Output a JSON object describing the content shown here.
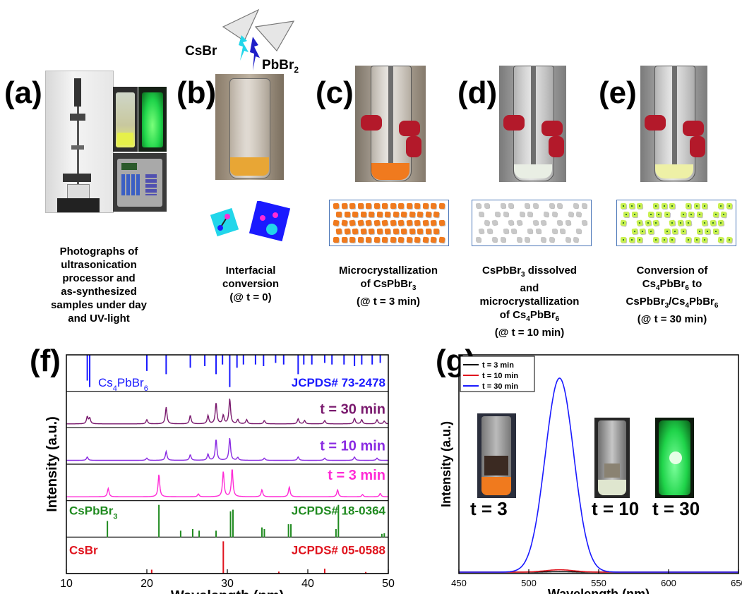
{
  "panels": {
    "a": {
      "label": "(a)",
      "caption": [
        "Photographs of",
        "ultrasonication",
        "processor and",
        "as-synthesized",
        "samples under day",
        "and UV-light"
      ]
    },
    "b": {
      "label": "(b)",
      "caption": [
        "Interfacial",
        "conversion",
        "(@ t = 0)"
      ],
      "reagent_left": "CsBr",
      "reagent_right": "PbBr",
      "reagent_right_sub": "2"
    },
    "c": {
      "label": "(c)",
      "caption": [
        "Microcrystallization",
        "of CsPbBr3",
        "(@ t = 3 min)"
      ]
    },
    "d": {
      "label": "(d)",
      "caption": [
        "CsPbBr3 dissolved",
        "and",
        "microcrystallization",
        "of Cs4PbBr6",
        "(@ t = 10 min)"
      ]
    },
    "e": {
      "label": "(e)",
      "caption": [
        "Conversion of",
        "Cs4PbBr6 to",
        "CsPbBr3/Cs4PbBr6",
        "(@ t = 30 min)"
      ]
    },
    "f": {
      "label": "(f)"
    },
    "g": {
      "label": "(g)"
    }
  },
  "colors": {
    "cs4pbbr6": "#1a1aff",
    "t30": "#7a1a6e",
    "t10": "#8a2be2",
    "t3": "#ff2bd6",
    "cspbbr3": "#1f8a1f",
    "csbr": "#e0141e",
    "sketch_border": "#4a76b8",
    "orange": "#f07a1e",
    "grey": "#c8c8c8",
    "green_yellow": "#c8f050"
  },
  "chart_data": [
    {
      "type": "line",
      "panel": "(f)",
      "xlabel": "Wavelength (nm)",
      "ylabel": "Intensity (a.u.)",
      "xlim": [
        10,
        50
      ],
      "xticks": [
        10,
        20,
        30,
        40,
        50
      ],
      "stack": [
        {
          "name": "Cs4PbBr6",
          "ref": "JCPDS# 73-2478",
          "kind": "sticks",
          "peaks": [
            [
              12.6,
              0.8
            ],
            [
              12.9,
              1.0
            ],
            [
              20.0,
              0.5
            ],
            [
              22.4,
              0.6
            ],
            [
              25.4,
              0.4
            ],
            [
              27.2,
              0.35
            ],
            [
              28.6,
              0.6
            ],
            [
              29.4,
              0.3
            ],
            [
              30.3,
              1.0
            ],
            [
              31.2,
              0.4
            ],
            [
              32.0,
              0.3
            ],
            [
              33.5,
              0.3
            ],
            [
              34.5,
              0.35
            ],
            [
              36.0,
              0.25
            ],
            [
              37.0,
              0.3
            ],
            [
              38.8,
              0.6
            ],
            [
              39.5,
              0.3
            ],
            [
              40.5,
              0.3
            ],
            [
              42.1,
              0.25
            ],
            [
              43.0,
              0.3
            ],
            [
              44.5,
              0.3
            ],
            [
              45.8,
              0.35
            ],
            [
              46.7,
              0.3
            ],
            [
              48.0,
              0.3
            ],
            [
              49.0,
              0.25
            ]
          ]
        },
        {
          "name": "t = 30 min",
          "kind": "pattern",
          "peaks": [
            [
              12.6,
              0.25
            ],
            [
              12.9,
              0.2
            ],
            [
              20.0,
              0.15
            ],
            [
              22.4,
              0.6
            ],
            [
              25.4,
              0.3
            ],
            [
              27.6,
              0.3
            ],
            [
              28.6,
              0.75
            ],
            [
              29.5,
              0.3
            ],
            [
              30.3,
              0.9
            ],
            [
              31.3,
              0.15
            ],
            [
              32.4,
              0.15
            ],
            [
              34.6,
              0.12
            ],
            [
              38.8,
              0.18
            ],
            [
              39.6,
              0.12
            ],
            [
              42.1,
              0.12
            ],
            [
              45.8,
              0.2
            ],
            [
              46.7,
              0.15
            ],
            [
              48.6,
              0.15
            ],
            [
              49.5,
              0.1
            ]
          ]
        },
        {
          "name": "t = 10 min",
          "kind": "pattern",
          "peaks": [
            [
              12.6,
              0.12
            ],
            [
              20.0,
              0.08
            ],
            [
              22.4,
              0.32
            ],
            [
              25.4,
              0.2
            ],
            [
              27.6,
              0.22
            ],
            [
              28.6,
              0.75
            ],
            [
              30.3,
              0.8
            ],
            [
              31.3,
              0.1
            ],
            [
              34.6,
              0.08
            ],
            [
              38.8,
              0.12
            ],
            [
              42.1,
              0.08
            ],
            [
              45.8,
              0.12
            ],
            [
              48.6,
              0.08
            ]
          ]
        },
        {
          "name": "t = 3 min",
          "kind": "pattern",
          "peaks": [
            [
              15.2,
              0.3
            ],
            [
              21.5,
              0.8
            ],
            [
              26.4,
              0.1
            ],
            [
              29.5,
              0.9
            ],
            [
              30.6,
              1.0
            ],
            [
              34.3,
              0.25
            ],
            [
              37.7,
              0.35
            ],
            [
              43.7,
              0.25
            ],
            [
              46.8,
              0.08
            ],
            [
              49.0,
              0.12
            ]
          ]
        },
        {
          "name": "CsPbBr3",
          "ref": "JCPDS# 18-0364",
          "kind": "sticks",
          "peaks": [
            [
              15.1,
              0.5
            ],
            [
              21.5,
              1.0
            ],
            [
              24.2,
              0.2
            ],
            [
              25.7,
              0.25
            ],
            [
              26.5,
              0.2
            ],
            [
              28.6,
              0.2
            ],
            [
              30.4,
              0.8
            ],
            [
              30.7,
              0.85
            ],
            [
              34.3,
              0.3
            ],
            [
              34.6,
              0.25
            ],
            [
              37.6,
              0.4
            ],
            [
              37.9,
              0.4
            ],
            [
              43.5,
              0.25
            ],
            [
              43.8,
              1.0
            ],
            [
              49.2,
              0.1
            ],
            [
              49.5,
              0.12
            ]
          ]
        },
        {
          "name": "CsBr",
          "ref": "JCPDS# 05-0588",
          "kind": "sticks",
          "peaks": [
            [
              20.6,
              0.12
            ],
            [
              29.5,
              1.0
            ],
            [
              36.4,
              0.06
            ],
            [
              42.1,
              0.15
            ],
            [
              47.2,
              0.05
            ]
          ]
        }
      ]
    },
    {
      "type": "line",
      "panel": "(g)",
      "xlabel": "Wavelength (nm)",
      "ylabel": "Intensity (a.u.)",
      "xlim": [
        450,
        650
      ],
      "xticks": [
        450,
        500,
        550,
        600,
        650
      ],
      "series": [
        {
          "name": "t = 3 min",
          "peak_nm": 522,
          "fwhm_nm": 22,
          "height": 0.002
        },
        {
          "name": "t = 10 min",
          "peak_nm": 522,
          "fwhm_nm": 24,
          "height": 0.012
        },
        {
          "name": "t = 30 min",
          "peak_nm": 522,
          "fwhm_nm": 24,
          "height": 1.0
        }
      ],
      "insets": [
        "t = 3",
        "t = 10",
        "t = 30"
      ]
    }
  ]
}
